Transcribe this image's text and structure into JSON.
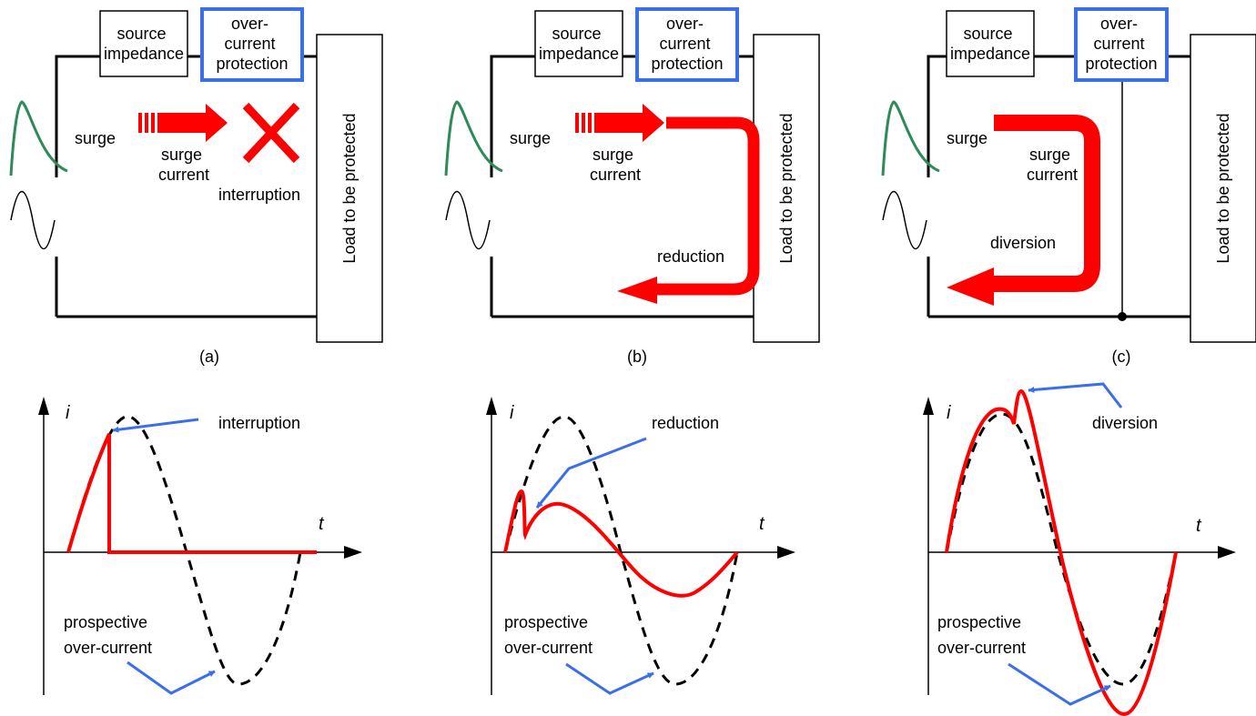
{
  "panels": [
    {
      "caption": "(a)",
      "source_box": [
        "source",
        "impedance"
      ],
      "protection_box": [
        "over-",
        "current",
        "protection"
      ],
      "load_label": "Load to be protected",
      "surge_label": "surge",
      "current_label": [
        "surge",
        "current"
      ],
      "action_label": "interruption",
      "graph": {
        "y_axis": "i",
        "x_axis": "t",
        "callout": "interruption",
        "prospective": [
          "prospective",
          "over-current"
        ]
      }
    },
    {
      "caption": "(b)",
      "source_box": [
        "source",
        "impedance"
      ],
      "protection_box": [
        "over-",
        "current",
        "protection"
      ],
      "load_label": "Load to be protected",
      "surge_label": "surge",
      "current_label": [
        "surge",
        "current"
      ],
      "action_label": "reduction",
      "graph": {
        "y_axis": "i",
        "x_axis": "t",
        "callout": "reduction",
        "prospective": [
          "prospective",
          "over-current"
        ]
      }
    },
    {
      "caption": "(c)",
      "source_box": [
        "source",
        "impedance"
      ],
      "protection_box": [
        "over-",
        "current",
        "protection"
      ],
      "load_label": "Load to be protected",
      "surge_label": "surge",
      "current_label": [
        "surge",
        "current"
      ],
      "action_label": "diversion",
      "graph": {
        "y_axis": "i",
        "x_axis": "t",
        "callout": "diversion",
        "prospective": [
          "prospective",
          "over-current"
        ]
      }
    }
  ],
  "colors": {
    "protection_border": "#3a6fe8",
    "surge_arrow": "#ff0000",
    "surge_wave": "#2e8b57",
    "callout_arrow": "#3a6fe8",
    "prospective_curve": "#000000"
  }
}
